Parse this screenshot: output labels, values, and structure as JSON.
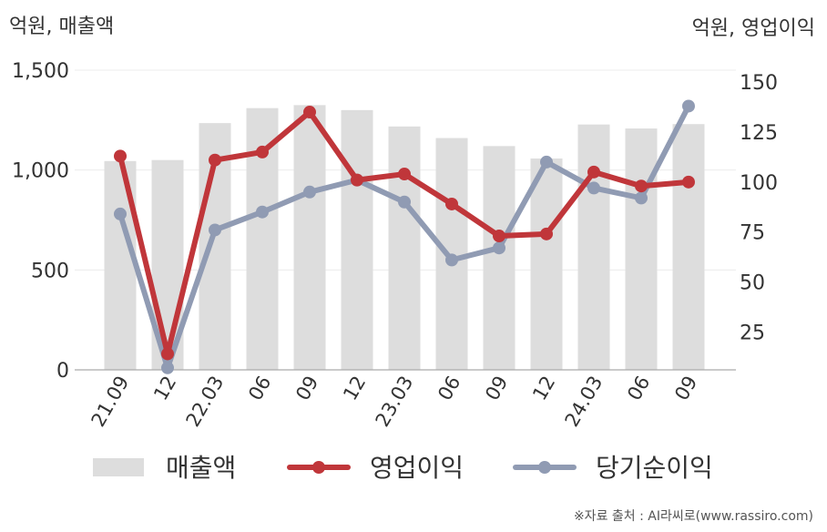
{
  "chart_data": {
    "type": "bar+line",
    "left_axis_label": "억원, 매출액",
    "right_axis_label": "억원, 영업이익",
    "categories": [
      "21.09",
      "12",
      "22.03",
      "06",
      "09",
      "12",
      "23.03",
      "06",
      "09",
      "12",
      "24.03",
      "06",
      "09"
    ],
    "left_ticks": [
      "0",
      "500",
      "1,000",
      "1,500"
    ],
    "right_ticks": [
      "25",
      "50",
      "75",
      "100",
      "125",
      "150"
    ],
    "left_ylim": [
      0,
      1500
    ],
    "right_ylim": [
      6,
      156
    ],
    "series": [
      {
        "name": "매출액",
        "type": "bar",
        "axis": "left",
        "color": "#dddddd",
        "values": [
          1045,
          1050,
          1235,
          1310,
          1325,
          1300,
          1218,
          1160,
          1120,
          1058,
          1228,
          1208,
          1230
        ]
      },
      {
        "name": "영업이익",
        "type": "line",
        "axis": "right",
        "color": "#c0363a",
        "values": [
          113,
          14,
          111,
          115,
          135,
          101,
          104,
          89,
          73,
          74,
          105,
          98,
          100
        ]
      },
      {
        "name": "당기순이익",
        "type": "line",
        "axis": "right",
        "color": "#909bb3",
        "values": [
          84,
          7,
          76,
          85,
          95,
          101,
          90,
          61,
          67,
          110,
          97,
          92,
          138
        ]
      }
    ],
    "grid": true,
    "legend_position": "bottom"
  },
  "source_note": "※자료 출처 : AI라씨로(www.rassiro.com)"
}
